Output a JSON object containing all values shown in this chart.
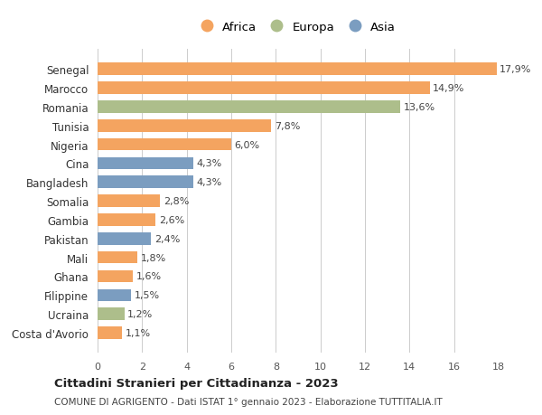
{
  "countries": [
    "Costa d'Avorio",
    "Ucraina",
    "Filippine",
    "Ghana",
    "Mali",
    "Pakistan",
    "Gambia",
    "Somalia",
    "Bangladesh",
    "Cina",
    "Nigeria",
    "Tunisia",
    "Romania",
    "Marocco",
    "Senegal"
  ],
  "values": [
    1.1,
    1.2,
    1.5,
    1.6,
    1.8,
    2.4,
    2.6,
    2.8,
    4.3,
    4.3,
    6.0,
    7.8,
    13.6,
    14.9,
    17.9
  ],
  "continents": [
    "Africa",
    "Europa",
    "Asia",
    "Africa",
    "Africa",
    "Asia",
    "Africa",
    "Africa",
    "Asia",
    "Asia",
    "Africa",
    "Africa",
    "Europa",
    "Africa",
    "Africa"
  ],
  "colors": {
    "Africa": "#F4A460",
    "Europa": "#ADBE8B",
    "Asia": "#7B9DC0"
  },
  "labels": [
    "1,1%",
    "1,2%",
    "1,5%",
    "1,6%",
    "1,8%",
    "2,4%",
    "2,6%",
    "2,8%",
    "4,3%",
    "4,3%",
    "6,0%",
    "7,8%",
    "13,6%",
    "14,9%",
    "17,9%"
  ],
  "xlim": [
    0,
    18
  ],
  "xticks": [
    0,
    2,
    4,
    6,
    8,
    10,
    12,
    14,
    16,
    18
  ],
  "title": "Cittadini Stranieri per Cittadinanza - 2023",
  "subtitle": "COMUNE DI AGRIGENTO - Dati ISTAT 1° gennaio 2023 - Elaborazione TUTTITALIA.IT",
  "legend_order": [
    "Africa",
    "Europa",
    "Asia"
  ],
  "background_color": "#ffffff",
  "grid_color": "#cccccc"
}
